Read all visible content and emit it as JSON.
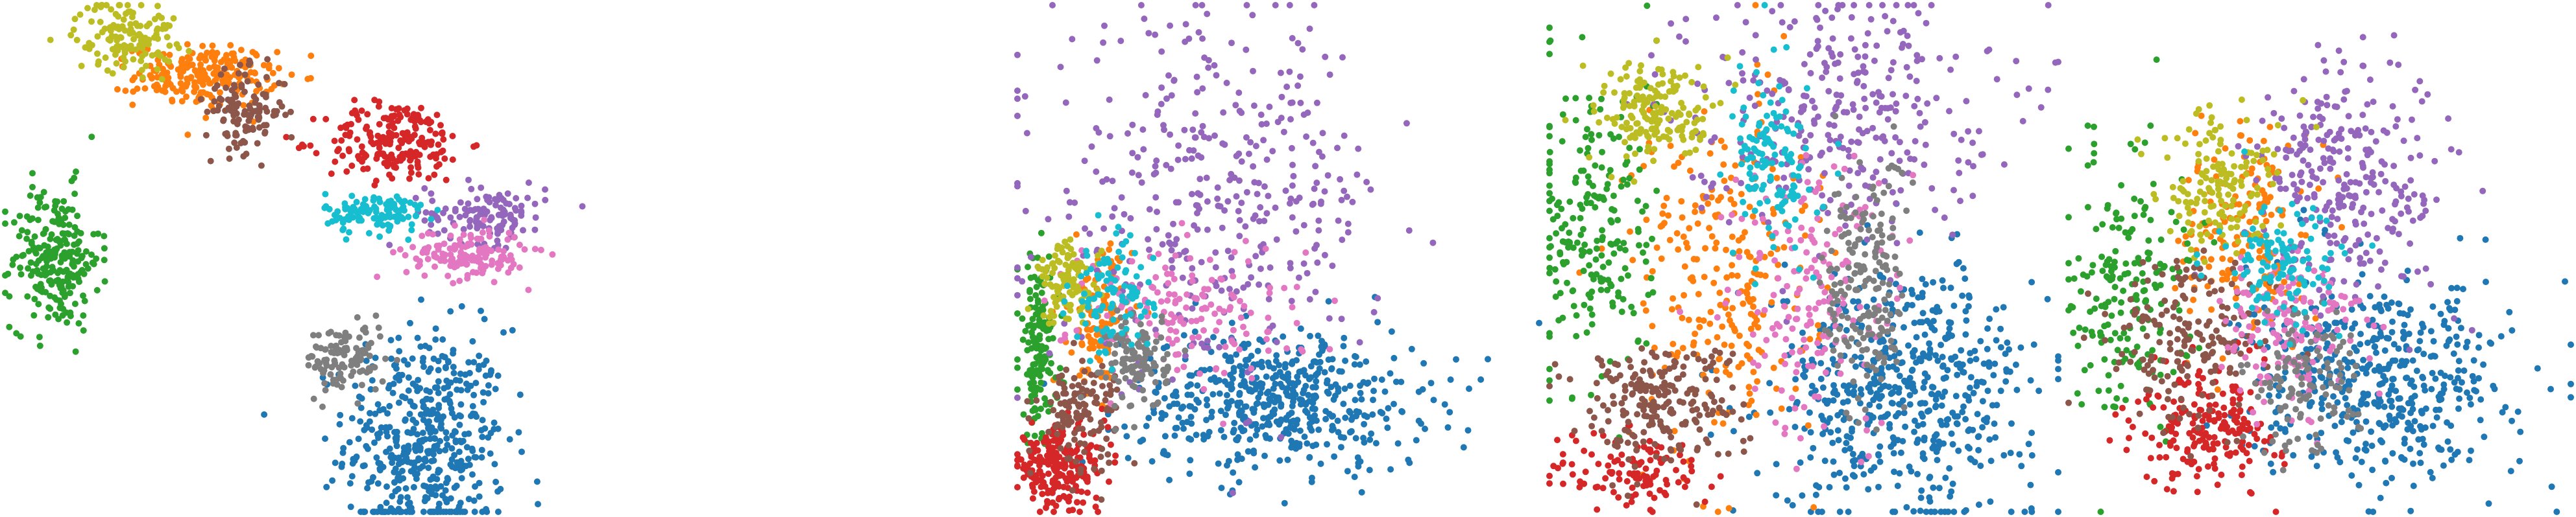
{
  "figure": {
    "title": "",
    "cluster_colors": [
      "#1f77b4",
      "#ff7f0e",
      "#2ca02c",
      "#d62728",
      "#9467bd",
      "#8c564b",
      "#e377c2",
      "#7f7f7f",
      "#bcbd22",
      "#17becf"
    ]
  },
  "chart_data": [
    {
      "type": "scatter",
      "title": "",
      "xlabel": "",
      "ylabel": "",
      "grid": false,
      "axes_visible": false,
      "legend": "none",
      "xlim": [
        0,
        100
      ],
      "ylim": [
        0,
        100
      ],
      "clusters": [
        {
          "label": 0,
          "color": "#1f77b4",
          "center": [
            42,
            14
          ],
          "spread": [
            4,
            11
          ],
          "count": 480
        },
        {
          "label": 1,
          "color": "#ff7f0e",
          "center": [
            20,
            86
          ],
          "spread": [
            3.5,
            3
          ],
          "count": 220
        },
        {
          "label": 2,
          "color": "#2ca02c",
          "center": [
            5,
            50
          ],
          "spread": [
            2.2,
            7
          ],
          "count": 240
        },
        {
          "label": 3,
          "color": "#d62728",
          "center": [
            39,
            73
          ],
          "spread": [
            3.5,
            4
          ],
          "count": 200
        },
        {
          "label": 4,
          "color": "#9467bd",
          "center": [
            48,
            59
          ],
          "spread": [
            3,
            3
          ],
          "count": 130
        },
        {
          "label": 5,
          "color": "#8c564b",
          "center": [
            24,
            79
          ],
          "spread": [
            2,
            4
          ],
          "count": 120
        },
        {
          "label": 6,
          "color": "#e377c2",
          "center": [
            46,
            51
          ],
          "spread": [
            3,
            2.5
          ],
          "count": 150
        },
        {
          "label": 7,
          "color": "#7f7f7f",
          "center": [
            34,
            30
          ],
          "spread": [
            2,
            3.5
          ],
          "count": 110
        },
        {
          "label": 8,
          "color": "#bcbd22",
          "center": [
            12,
            94
          ],
          "spread": [
            2.5,
            3.5
          ],
          "count": 140
        },
        {
          "label": 9,
          "color": "#17becf",
          "center": [
            37,
            59
          ],
          "spread": [
            2.5,
            2
          ],
          "count": 120
        }
      ]
    },
    {
      "type": "scatter",
      "title": "",
      "xlabel": "",
      "ylabel": "",
      "grid": false,
      "axes_visible": false,
      "legend": "none",
      "xlim": [
        0,
        100
      ],
      "ylim": [
        0,
        100
      ],
      "clusters": [
        {
          "label": 0,
          "color": "#1f77b4",
          "center": [
            50,
            22
          ],
          "spread": [
            14,
            7
          ],
          "count": 520
        },
        {
          "label": 1,
          "color": "#ff7f0e",
          "center": [
            16,
            38
          ],
          "spread": [
            3,
            7
          ],
          "count": 110
        },
        {
          "label": 2,
          "color": "#2ca02c",
          "center": [
            4,
            32
          ],
          "spread": [
            2,
            9
          ],
          "count": 160
        },
        {
          "label": 3,
          "color": "#d62728",
          "center": [
            8,
            9
          ],
          "spread": [
            4.5,
            4
          ],
          "count": 220
        },
        {
          "label": 4,
          "color": "#9467bd",
          "center": [
            38,
            62
          ],
          "spread": [
            16,
            17
          ],
          "count": 380
        },
        {
          "label": 5,
          "color": "#8c564b",
          "center": [
            12,
            20
          ],
          "spread": [
            4,
            5
          ],
          "count": 120
        },
        {
          "label": 6,
          "color": "#e377c2",
          "center": [
            32,
            40
          ],
          "spread": [
            11,
            7
          ],
          "count": 160
        },
        {
          "label": 7,
          "color": "#7f7f7f",
          "center": [
            23,
            30
          ],
          "spread": [
            3,
            5
          ],
          "count": 120
        },
        {
          "label": 8,
          "color": "#bcbd22",
          "center": [
            10,
            45
          ],
          "spread": [
            3,
            4
          ],
          "count": 110
        },
        {
          "label": 9,
          "color": "#17becf",
          "center": [
            18,
            42
          ],
          "spread": [
            4,
            6
          ],
          "count": 100
        }
      ]
    },
    {
      "type": "scatter",
      "title": "",
      "xlabel": "",
      "ylabel": "",
      "grid": false,
      "axes_visible": false,
      "legend": "none",
      "xlim": [
        0,
        100
      ],
      "ylim": [
        0,
        100
      ],
      "clusters": [
        {
          "label": 0,
          "color": "#1f77b4",
          "center": [
            70,
            24
          ],
          "spread": [
            13,
            12
          ],
          "count": 560
        },
        {
          "label": 1,
          "color": "#ff7f0e",
          "center": [
            34,
            47
          ],
          "spread": [
            9,
            17
          ],
          "count": 260
        },
        {
          "label": 2,
          "color": "#2ca02c",
          "center": [
            9,
            56
          ],
          "spread": [
            6,
            17
          ],
          "count": 220
        },
        {
          "label": 3,
          "color": "#d62728",
          "center": [
            16,
            8
          ],
          "spread": [
            8,
            4
          ],
          "count": 110
        },
        {
          "label": 4,
          "color": "#9467bd",
          "center": [
            57,
            80
          ],
          "spread": [
            15,
            12
          ],
          "count": 320
        },
        {
          "label": 5,
          "color": "#8c564b",
          "center": [
            21,
            22
          ],
          "spread": [
            8,
            6
          ],
          "count": 220
        },
        {
          "label": 6,
          "color": "#e377c2",
          "center": [
            52,
            42
          ],
          "spread": [
            9,
            14
          ],
          "count": 170
        },
        {
          "label": 7,
          "color": "#7f7f7f",
          "center": [
            62,
            45
          ],
          "spread": [
            4,
            13
          ],
          "count": 190
        },
        {
          "label": 8,
          "color": "#bcbd22",
          "center": [
            21,
            79
          ],
          "spread": [
            6,
            5
          ],
          "count": 170
        },
        {
          "label": 9,
          "color": "#17becf",
          "center": [
            44,
            68
          ],
          "spread": [
            4,
            9
          ],
          "count": 130
        }
      ]
    },
    {
      "type": "scatter",
      "title": "",
      "xlabel": "",
      "ylabel": "",
      "grid": false,
      "axes_visible": false,
      "legend": "none",
      "xlim": [
        0,
        100
      ],
      "ylim": [
        0,
        100
      ],
      "clusters": [
        {
          "label": 0,
          "color": "#1f77b4",
          "center": [
            62,
            26
          ],
          "spread": [
            13,
            10
          ],
          "count": 480
        },
        {
          "label": 1,
          "color": "#ff7f0e",
          "center": [
            35,
            55
          ],
          "spread": [
            6,
            10
          ],
          "count": 170
        },
        {
          "label": 2,
          "color": "#2ca02c",
          "center": [
            12,
            45
          ],
          "spread": [
            6,
            14
          ],
          "count": 200
        },
        {
          "label": 3,
          "color": "#d62728",
          "center": [
            28,
            17
          ],
          "spread": [
            7,
            6
          ],
          "count": 200
        },
        {
          "label": 4,
          "color": "#9467bd",
          "center": [
            56,
            66
          ],
          "spread": [
            10,
            12
          ],
          "count": 280
        },
        {
          "label": 5,
          "color": "#8c564b",
          "center": [
            25,
            34
          ],
          "spread": [
            8,
            8
          ],
          "count": 180
        },
        {
          "label": 6,
          "color": "#e377c2",
          "center": [
            44,
            37
          ],
          "spread": [
            7,
            8
          ],
          "count": 150
        },
        {
          "label": 7,
          "color": "#7f7f7f",
          "center": [
            46,
            25
          ],
          "spread": [
            6,
            7
          ],
          "count": 120
        },
        {
          "label": 8,
          "color": "#bcbd22",
          "center": [
            30,
            64
          ],
          "spread": [
            6,
            7
          ],
          "count": 150
        },
        {
          "label": 9,
          "color": "#17becf",
          "center": [
            42,
            48
          ],
          "spread": [
            6,
            6
          ],
          "count": 120
        }
      ]
    }
  ]
}
